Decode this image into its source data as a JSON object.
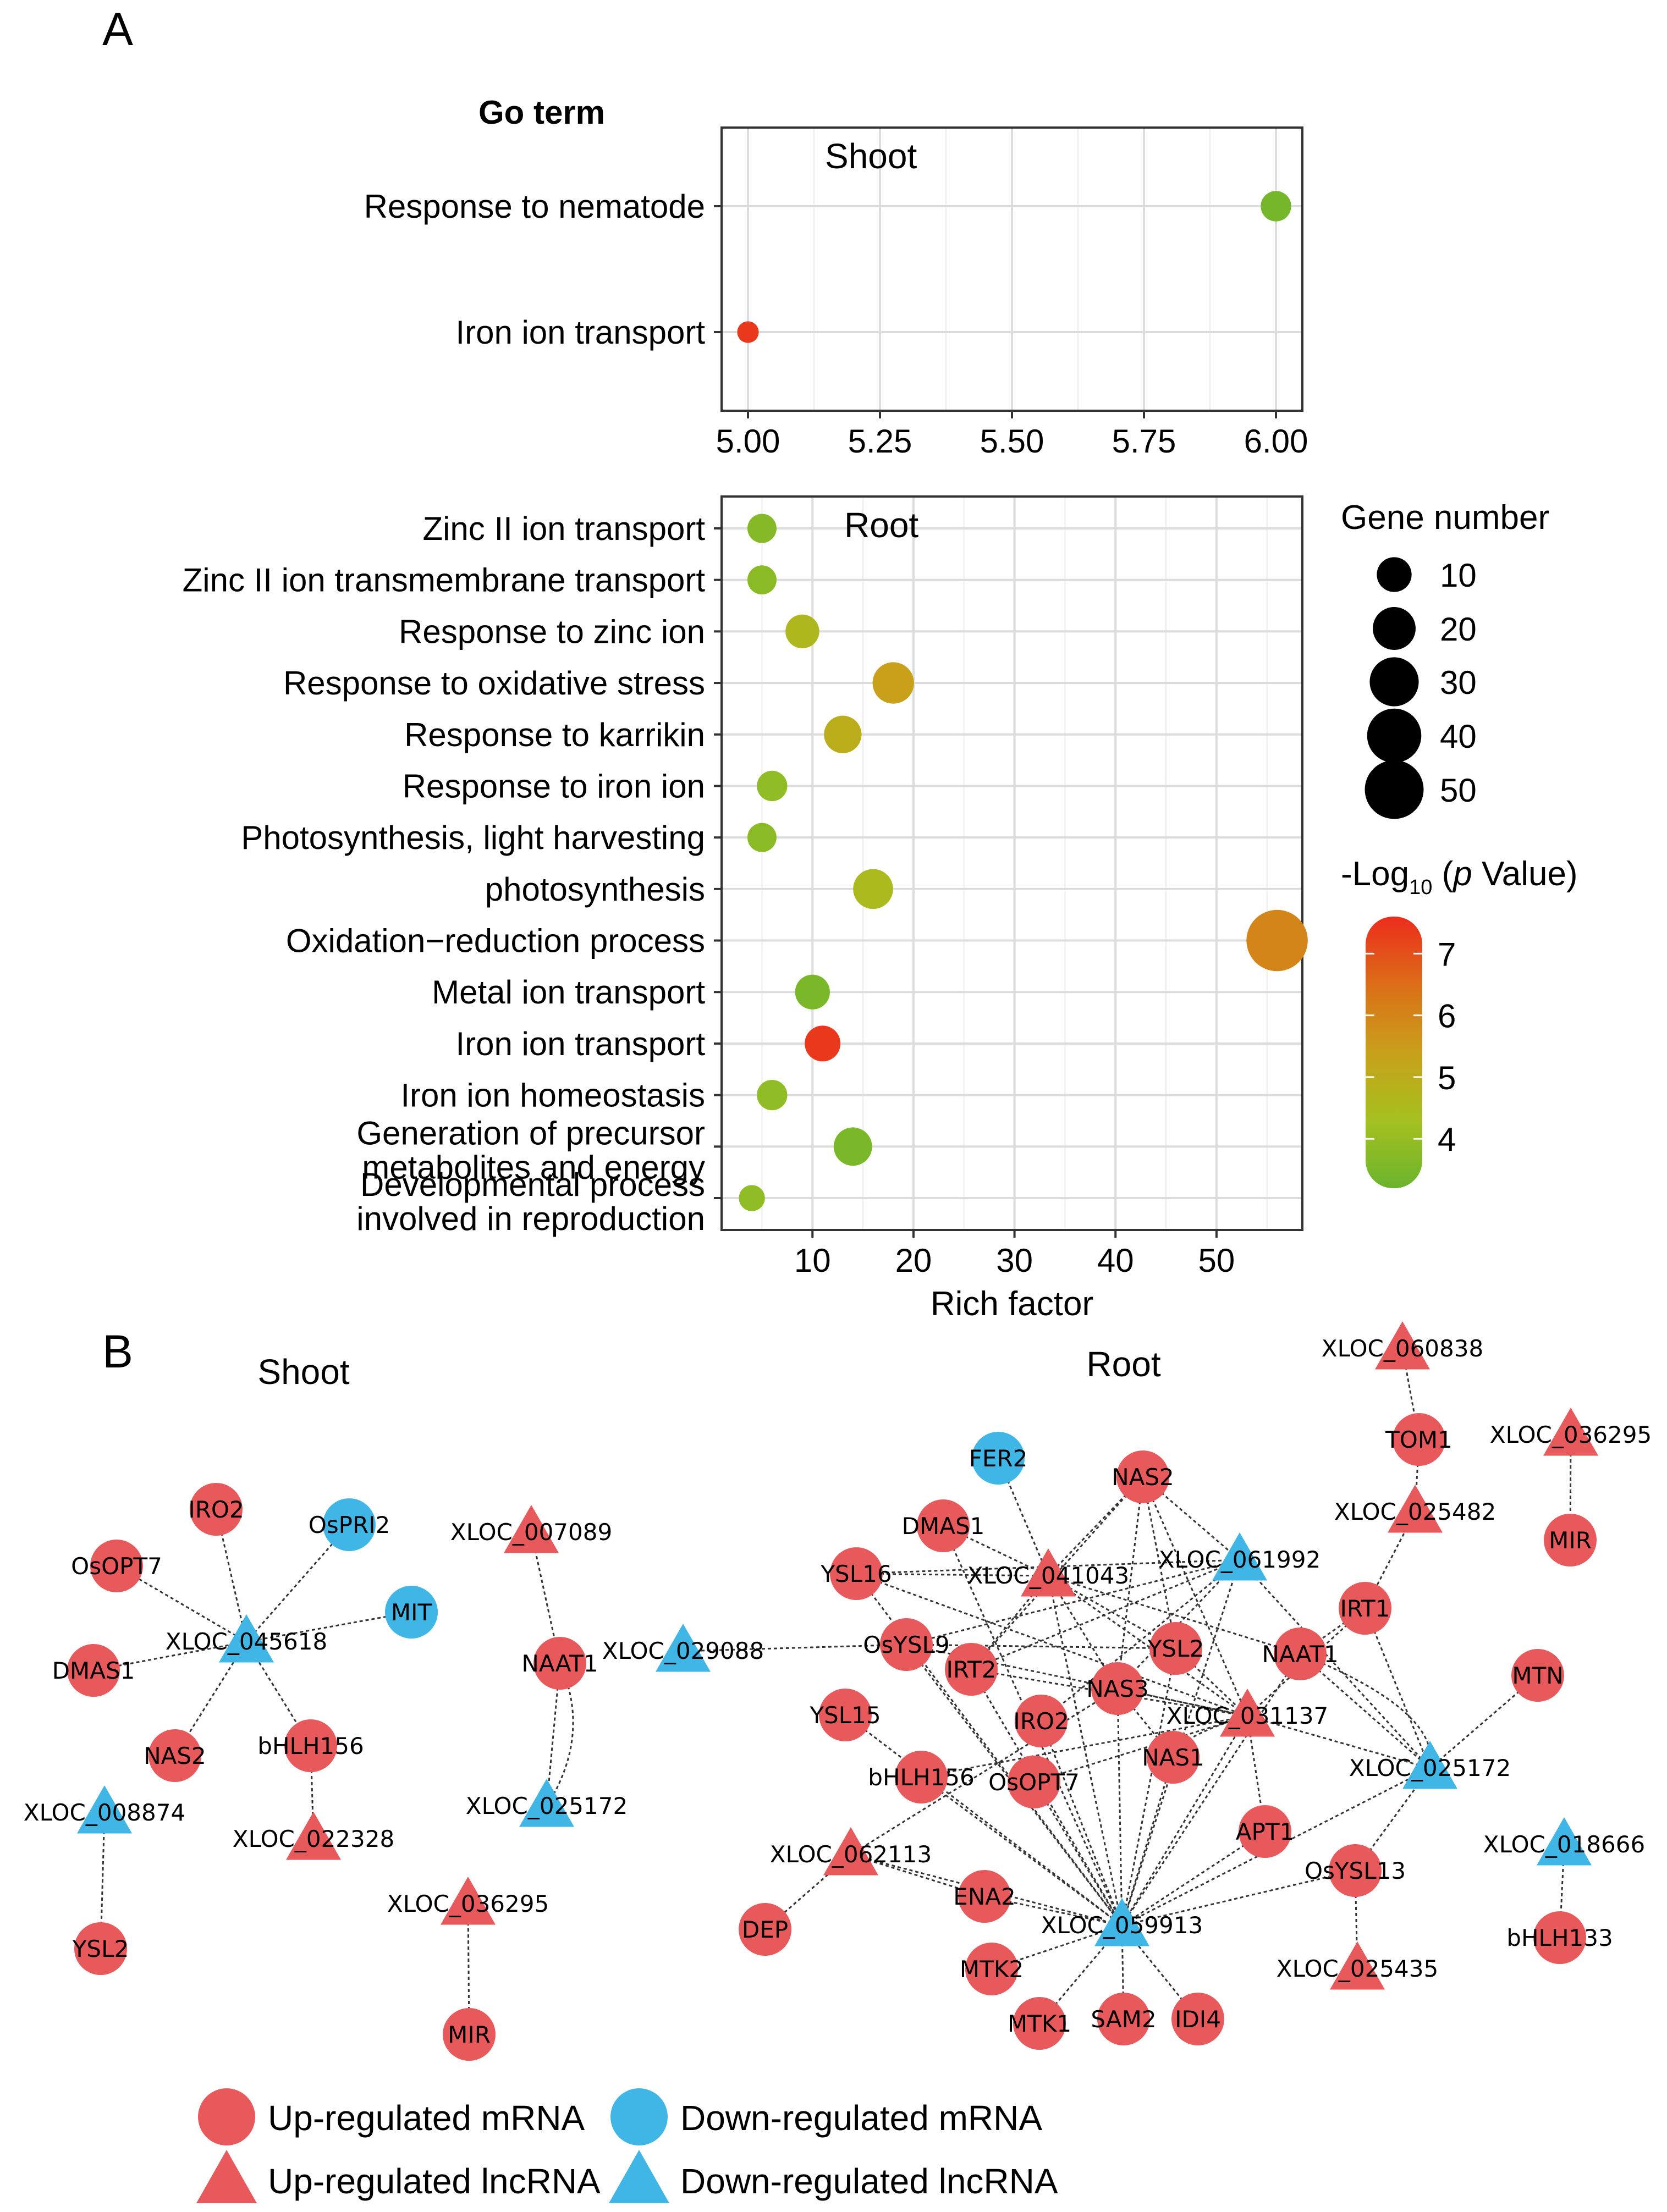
{
  "panel_a_label": "A",
  "panel_b_label": "B",
  "go_term_header": "Go term",
  "chart_data": [
    {
      "type": "scatter",
      "title": "Shoot",
      "xlabel": "",
      "ylabel": "Go term",
      "xlim": [
        4.95,
        6.05
      ],
      "xticks": [
        5.0,
        5.25,
        5.5,
        5.75,
        6.0
      ],
      "xtick_labels": [
        "5.00",
        "5.25",
        "5.50",
        "5.75",
        "6.00"
      ],
      "categories": [
        "Response to nematode",
        "Iron ion transport"
      ],
      "points": [
        {
          "term": "Response to nematode",
          "rich_factor": 6.0,
          "gene_number": 6,
          "neg_log10_p": 3.4
        },
        {
          "term": "Iron ion transport",
          "rich_factor": 5.0,
          "gene_number": 1,
          "neg_log10_p": 7.4
        }
      ]
    },
    {
      "type": "scatter",
      "title": "Root",
      "xlabel": "Rich factor",
      "ylabel": "Go term",
      "xlim": [
        1.0,
        58.5
      ],
      "xticks": [
        10,
        20,
        30,
        40,
        50
      ],
      "xtick_labels": [
        "10",
        "20",
        "30",
        "40",
        "50"
      ],
      "categories": [
        "Zinc II ion transport",
        "Zinc II ion transmembrane transport",
        "Response to zinc ion",
        "Response to oxidative stress",
        "Response to karrikin",
        "Response to iron ion",
        "Photosynthesis, light harvesting",
        "photosynthesis",
        "Oxidation−reduction process",
        "Metal ion transport",
        "Iron ion transport",
        "Iron ion homeostasis",
        "Generation of precursor metabolites and energy",
        "Developmental process involved in reproduction"
      ],
      "points": [
        {
          "term": "Zinc II ion transport",
          "rich_factor": 5,
          "gene_number": 5,
          "neg_log10_p": 3.7
        },
        {
          "term": "Zinc II ion transmembrane transport",
          "rich_factor": 5,
          "gene_number": 5,
          "neg_log10_p": 3.8
        },
        {
          "term": "Response to zinc ion",
          "rich_factor": 9,
          "gene_number": 9,
          "neg_log10_p": 4.6
        },
        {
          "term": "Response to oxidative stress",
          "rich_factor": 18,
          "gene_number": 18,
          "neg_log10_p": 5.4
        },
        {
          "term": "Response to karrikin",
          "rich_factor": 13,
          "gene_number": 13,
          "neg_log10_p": 5.0
        },
        {
          "term": "Response to iron ion",
          "rich_factor": 6,
          "gene_number": 6,
          "neg_log10_p": 3.9
        },
        {
          "term": "Photosynthesis, light harvesting",
          "rich_factor": 5,
          "gene_number": 5,
          "neg_log10_p": 3.8
        },
        {
          "term": "photosynthesis",
          "rich_factor": 16,
          "gene_number": 16,
          "neg_log10_p": 4.5
        },
        {
          "term": "Oxidation−reduction process",
          "rich_factor": 56,
          "gene_number": 56,
          "neg_log10_p": 6.0
        },
        {
          "term": "Metal ion transport",
          "rich_factor": 10,
          "gene_number": 10,
          "neg_log10_p": 3.5
        },
        {
          "term": "Iron ion transport",
          "rich_factor": 11,
          "gene_number": 11,
          "neg_log10_p": 7.4
        },
        {
          "term": "Iron ion homeostasis",
          "rich_factor": 6,
          "gene_number": 6,
          "neg_log10_p": 3.9
        },
        {
          "term": "Generation of precursor metabolites and energy",
          "rich_factor": 14,
          "gene_number": 14,
          "neg_log10_p": 3.5
        },
        {
          "term": "Developmental process involved in reproduction",
          "rich_factor": 4,
          "gene_number": 3,
          "neg_log10_p": 3.9
        }
      ]
    }
  ],
  "size_legend": {
    "title": "Gene number",
    "values": [
      10,
      20,
      30,
      40,
      50
    ],
    "labels": [
      "10",
      "20",
      "30",
      "40",
      "50"
    ]
  },
  "color_legend": {
    "title_prefix": "-Log",
    "title_sub": "10",
    "title_p": "p",
    "title_suffix": " Value)",
    "title_open": " (",
    "min": 3.2,
    "max": 7.6,
    "ticks": [
      4,
      5,
      6,
      7
    ],
    "tick_labels": [
      "4",
      "5",
      "6",
      "7"
    ],
    "colors": [
      "#6ab42d",
      "#a5c020",
      "#c8a01a",
      "#dc6e18",
      "#ec2c1c"
    ]
  },
  "network": {
    "shoot_title": "Shoot",
    "root_title": "Root",
    "colors": {
      "up": "#e8595c",
      "down": "#3fb6e6"
    },
    "nodes": [
      {
        "id": "s_iro2",
        "label": "IRO2",
        "kind": "mrna",
        "reg": "up"
      },
      {
        "id": "s_ospri2",
        "label": "OsPRI2",
        "kind": "mrna",
        "reg": "down"
      },
      {
        "id": "s_osopt7",
        "label": "OsOPT7",
        "kind": "mrna",
        "reg": "up"
      },
      {
        "id": "s_mit",
        "label": "MIT",
        "kind": "mrna",
        "reg": "down"
      },
      {
        "id": "s_x045618",
        "label": "XLOC_045618",
        "kind": "lnc",
        "reg": "down"
      },
      {
        "id": "s_dmas1",
        "label": "DMAS1",
        "kind": "mrna",
        "reg": "up"
      },
      {
        "id": "s_nas2",
        "label": "NAS2",
        "kind": "mrna",
        "reg": "up"
      },
      {
        "id": "s_bhlh156",
        "label": "bHLH156",
        "kind": "mrna",
        "reg": "up"
      },
      {
        "id": "s_x022328",
        "label": "XLOC_022328",
        "kind": "lnc",
        "reg": "up"
      },
      {
        "id": "s_x008874",
        "label": "XLOC_008874",
        "kind": "lnc",
        "reg": "down"
      },
      {
        "id": "s_ysl2",
        "label": "YSL2",
        "kind": "mrna",
        "reg": "up"
      },
      {
        "id": "s_x007089",
        "label": "XLOC_007089",
        "kind": "lnc",
        "reg": "up"
      },
      {
        "id": "s_naat1",
        "label": "NAAT1",
        "kind": "mrna",
        "reg": "up"
      },
      {
        "id": "s_x025172",
        "label": "XLOC_025172",
        "kind": "lnc",
        "reg": "down"
      },
      {
        "id": "s_x036295",
        "label": "XLOC_036295",
        "kind": "lnc",
        "reg": "up"
      },
      {
        "id": "s_mir",
        "label": "MIR",
        "kind": "mrna",
        "reg": "up"
      },
      {
        "id": "s_x029088",
        "label": "XLOC_029088",
        "kind": "lnc",
        "reg": "down"
      },
      {
        "id": "r_fer2",
        "label": "FER2",
        "kind": "mrna",
        "reg": "down"
      },
      {
        "id": "r_nas2",
        "label": "NAS2",
        "kind": "mrna",
        "reg": "up"
      },
      {
        "id": "r_dmas1",
        "label": "DMAS1",
        "kind": "mrna",
        "reg": "up"
      },
      {
        "id": "r_ysl16",
        "label": "YSL16",
        "kind": "mrna",
        "reg": "up"
      },
      {
        "id": "r_x041043",
        "label": "XLOC_041043",
        "kind": "lnc",
        "reg": "up"
      },
      {
        "id": "r_x061992",
        "label": "XLOC_061992",
        "kind": "lnc",
        "reg": "down"
      },
      {
        "id": "r_osysl9",
        "label": "OsYSL9",
        "kind": "mrna",
        "reg": "up"
      },
      {
        "id": "r_ysl2",
        "label": "YSL2",
        "kind": "mrna",
        "reg": "up"
      },
      {
        "id": "r_irt2",
        "label": "IRT2",
        "kind": "mrna",
        "reg": "up"
      },
      {
        "id": "r_nas3",
        "label": "NAS3",
        "kind": "mrna",
        "reg": "up"
      },
      {
        "id": "r_naat1",
        "label": "NAAT1",
        "kind": "mrna",
        "reg": "up"
      },
      {
        "id": "r_irt1",
        "label": "IRT1",
        "kind": "mrna",
        "reg": "up"
      },
      {
        "id": "r_ysl15",
        "label": "YSL15",
        "kind": "mrna",
        "reg": "up"
      },
      {
        "id": "r_iro2",
        "label": "IRO2",
        "kind": "mrna",
        "reg": "up"
      },
      {
        "id": "r_x031137",
        "label": "XLOC_031137",
        "kind": "lnc",
        "reg": "up"
      },
      {
        "id": "r_bhlh156",
        "label": "bHLH156",
        "kind": "mrna",
        "reg": "up"
      },
      {
        "id": "r_osopt7",
        "label": "OsOPT7",
        "kind": "mrna",
        "reg": "up"
      },
      {
        "id": "r_nas1",
        "label": "NAS1",
        "kind": "mrna",
        "reg": "up"
      },
      {
        "id": "r_x025172",
        "label": "XLOC_025172",
        "kind": "lnc",
        "reg": "down"
      },
      {
        "id": "r_x062113",
        "label": "XLOC_062113",
        "kind": "lnc",
        "reg": "up"
      },
      {
        "id": "r_apt1",
        "label": "APT1",
        "kind": "mrna",
        "reg": "up"
      },
      {
        "id": "r_osysl13",
        "label": "OsYSL13",
        "kind": "mrna",
        "reg": "up"
      },
      {
        "id": "r_ena2",
        "label": "ENA2",
        "kind": "mrna",
        "reg": "up"
      },
      {
        "id": "r_dep",
        "label": "DEP",
        "kind": "mrna",
        "reg": "up"
      },
      {
        "id": "r_x059913",
        "label": "XLOC_059913",
        "kind": "lnc",
        "reg": "down"
      },
      {
        "id": "r_mtk2",
        "label": "MTK2",
        "kind": "mrna",
        "reg": "up"
      },
      {
        "id": "r_mtk1",
        "label": "MTK1",
        "kind": "mrna",
        "reg": "up"
      },
      {
        "id": "r_sam2",
        "label": "SAM2",
        "kind": "mrna",
        "reg": "up"
      },
      {
        "id": "r_idi4",
        "label": "IDI4",
        "kind": "mrna",
        "reg": "up"
      },
      {
        "id": "r_x025435",
        "label": "XLOC_025435",
        "kind": "lnc",
        "reg": "up"
      },
      {
        "id": "r_x060838",
        "label": "XLOC_060838",
        "kind": "lnc",
        "reg": "up"
      },
      {
        "id": "r_tom1",
        "label": "TOM1",
        "kind": "mrna",
        "reg": "up"
      },
      {
        "id": "r_x025482",
        "label": "XLOC_025482",
        "kind": "lnc",
        "reg": "up"
      },
      {
        "id": "r_x036295",
        "label": "XLOC_036295",
        "kind": "lnc",
        "reg": "up"
      },
      {
        "id": "r_mir",
        "label": "MIR",
        "kind": "mrna",
        "reg": "up"
      },
      {
        "id": "r_mtn",
        "label": "MTN",
        "kind": "mrna",
        "reg": "up"
      },
      {
        "id": "r_x018666",
        "label": "XLOC_018666",
        "kind": "lnc",
        "reg": "down"
      },
      {
        "id": "r_bhlh133",
        "label": "bHLH133",
        "kind": "mrna",
        "reg": "up"
      }
    ],
    "edges": [
      [
        "s_x045618",
        "s_iro2"
      ],
      [
        "s_x045618",
        "s_ospri2"
      ],
      [
        "s_x045618",
        "s_osopt7"
      ],
      [
        "s_x045618",
        "s_mit"
      ],
      [
        "s_x045618",
        "s_dmas1"
      ],
      [
        "s_x045618",
        "s_nas2"
      ],
      [
        "s_x045618",
        "s_bhlh156"
      ],
      [
        "s_bhlh156",
        "s_x022328"
      ],
      [
        "s_x008874",
        "s_ysl2"
      ],
      [
        "s_x007089",
        "s_naat1"
      ],
      [
        "s_naat1",
        "s_x025172"
      ],
      [
        "s_x036295",
        "s_mir"
      ],
      [
        "s_x029088",
        "r_osysl9"
      ],
      [
        "r_x060838",
        "r_tom1"
      ],
      [
        "r_tom1",
        "r_x025482"
      ],
      [
        "r_x025482",
        "r_irt1"
      ],
      [
        "r_x036295",
        "r_mir"
      ],
      [
        "r_x018666",
        "r_bhlh133"
      ],
      [
        "r_fer2",
        "r_x041043"
      ],
      [
        "r_dmas1",
        "r_x041043"
      ],
      [
        "r_ysl16",
        "r_x041043"
      ],
      [
        "r_nas2",
        "r_x041043"
      ],
      [
        "r_x041043",
        "r_nas3"
      ],
      [
        "r_x041043",
        "r_naat1"
      ],
      [
        "r_x041043",
        "r_x031137"
      ],
      [
        "r_x041043",
        "r_irt2"
      ],
      [
        "r_x041043",
        "r_ysl2"
      ],
      [
        "r_nas2",
        "r_x061992"
      ],
      [
        "r_nas2",
        "r_ysl2"
      ],
      [
        "r_nas2",
        "r_nas3"
      ],
      [
        "r_nas2",
        "r_x031137"
      ],
      [
        "r_nas2",
        "r_irt2"
      ],
      [
        "r_x061992",
        "r_ysl16"
      ],
      [
        "r_x061992",
        "r_osysl9"
      ],
      [
        "r_x061992",
        "r_irt2"
      ],
      [
        "r_x061992",
        "r_nas3"
      ],
      [
        "r_x061992",
        "r_x025172"
      ],
      [
        "r_x061992",
        "r_iro2"
      ],
      [
        "r_ysl16",
        "r_x031137"
      ],
      [
        "r_osysl9",
        "r_x031137"
      ],
      [
        "r_osysl9",
        "r_ysl2"
      ],
      [
        "r_irt2",
        "r_x031137"
      ],
      [
        "r_ysl2",
        "r_x031137"
      ],
      [
        "r_nas3",
        "r_x031137"
      ],
      [
        "r_naat1",
        "r_x025172"
      ],
      [
        "r_irt1",
        "r_x025172"
      ],
      [
        "r_x031137",
        "r_x025172"
      ],
      [
        "r_x031137",
        "r_apt1"
      ],
      [
        "r_x031137",
        "r_bhlh156"
      ],
      [
        "r_irt1",
        "r_x031137"
      ],
      [
        "r_ysl15",
        "r_x059913"
      ],
      [
        "r_iro2",
        "r_x059913"
      ],
      [
        "r_bhlh156",
        "r_x059913"
      ],
      [
        "r_osopt7",
        "r_x059913"
      ],
      [
        "r_nas1",
        "r_x059913"
      ],
      [
        "r_nas3",
        "r_x059913"
      ],
      [
        "r_irt2",
        "r_x059913"
      ],
      [
        "r_ysl16",
        "r_x059913"
      ],
      [
        "r_osysl9",
        "r_x059913"
      ],
      [
        "r_dmas1",
        "r_x059913"
      ],
      [
        "r_ysl2",
        "r_x059913"
      ],
      [
        "r_x041043",
        "r_x059913"
      ],
      [
        "r_x061992",
        "r_x059913"
      ],
      [
        "r_naat1",
        "r_x059913"
      ],
      [
        "r_x031137",
        "r_x059913"
      ],
      [
        "r_apt1",
        "r_x059913"
      ],
      [
        "r_x025172",
        "r_x059913"
      ],
      [
        "r_osysl13",
        "r_x059913"
      ],
      [
        "r_ena2",
        "r_x059913"
      ],
      [
        "r_mtk2",
        "r_x059913"
      ],
      [
        "r_mtk1",
        "r_x059913"
      ],
      [
        "r_sam2",
        "r_x059913"
      ],
      [
        "r_idi4",
        "r_x059913"
      ],
      [
        "r_x062113",
        "r_x059913"
      ],
      [
        "r_x062113",
        "r_dep"
      ],
      [
        "r_x062113",
        "r_ena2"
      ],
      [
        "r_x062113",
        "r_nas3"
      ],
      [
        "r_osysl13",
        "r_x025435"
      ],
      [
        "r_osysl13",
        "r_x025172"
      ],
      [
        "r_mtn",
        "r_x025172"
      ],
      [
        "r_nas1",
        "r_nas3"
      ],
      [
        "r_osopt7",
        "r_x031137"
      ],
      [
        "r_irt1",
        "r_naat1"
      ]
    ],
    "legend": [
      {
        "label": "Up-regulated mRNA",
        "kind": "mrna",
        "reg": "up"
      },
      {
        "label": "Down-regulated mRNA",
        "kind": "mrna",
        "reg": "down"
      },
      {
        "label": "Up-regulated lncRNA",
        "kind": "lnc",
        "reg": "up"
      },
      {
        "label": "Down-regulated lncRNA",
        "kind": "lnc",
        "reg": "down"
      }
    ]
  }
}
